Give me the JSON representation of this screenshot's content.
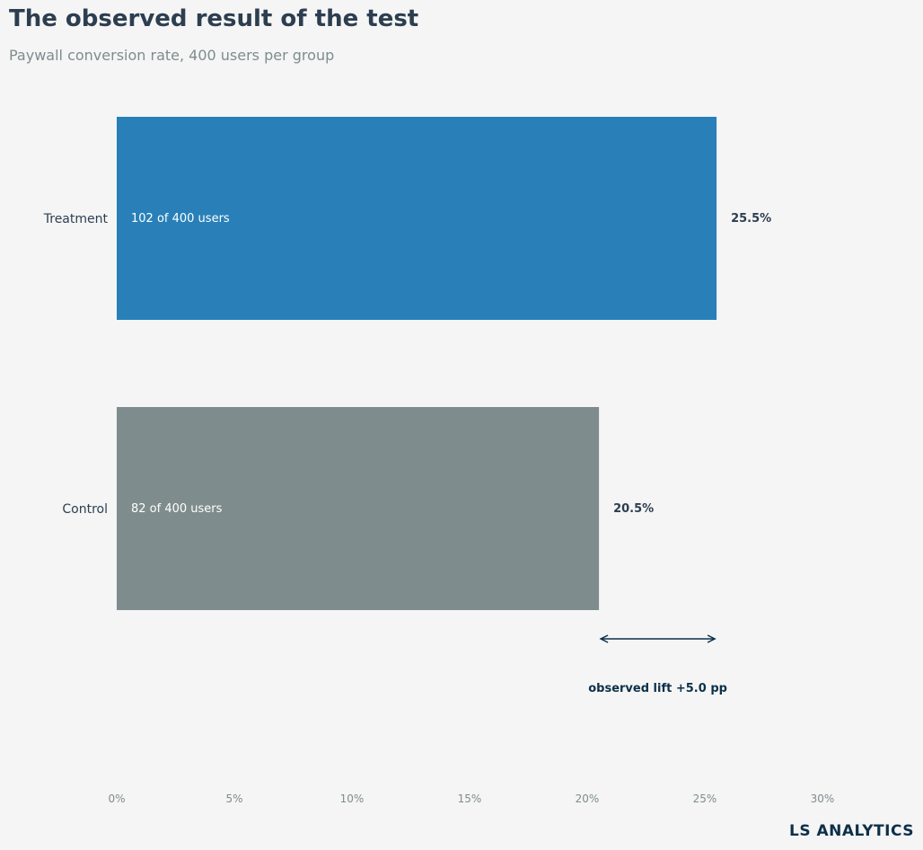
{
  "title": "The observed result of the test",
  "subtitle": "Paywall conversion rate, 400 users per group",
  "brand": "LS ANALYTICS",
  "colors": {
    "background": "#f5f5f5",
    "treatment": "#2980b9",
    "control": "#7f8c8d",
    "text_dark": "#2c3e50",
    "text_muted": "#7f8c8d",
    "annotation": "#0d3049"
  },
  "chart_data": {
    "type": "bar",
    "orientation": "horizontal",
    "categories": [
      "Treatment",
      "Control"
    ],
    "values": [
      25.5,
      20.5
    ],
    "value_labels": [
      "25.5%",
      "20.5%"
    ],
    "inner_labels": [
      "102 of 400 users",
      "82 of 400 users"
    ],
    "bar_colors": [
      "#2980b9",
      "#7f8c8d"
    ],
    "xlim": [
      0,
      34
    ],
    "xticks": [
      0,
      5,
      10,
      15,
      20,
      25,
      30
    ],
    "xtick_labels": [
      "0%",
      "5%",
      "10%",
      "15%",
      "20%",
      "25%",
      "30%"
    ],
    "grid": false,
    "annotation": {
      "text": "observed lift +5.0 pp",
      "from": 20.5,
      "to": 25.5
    }
  }
}
